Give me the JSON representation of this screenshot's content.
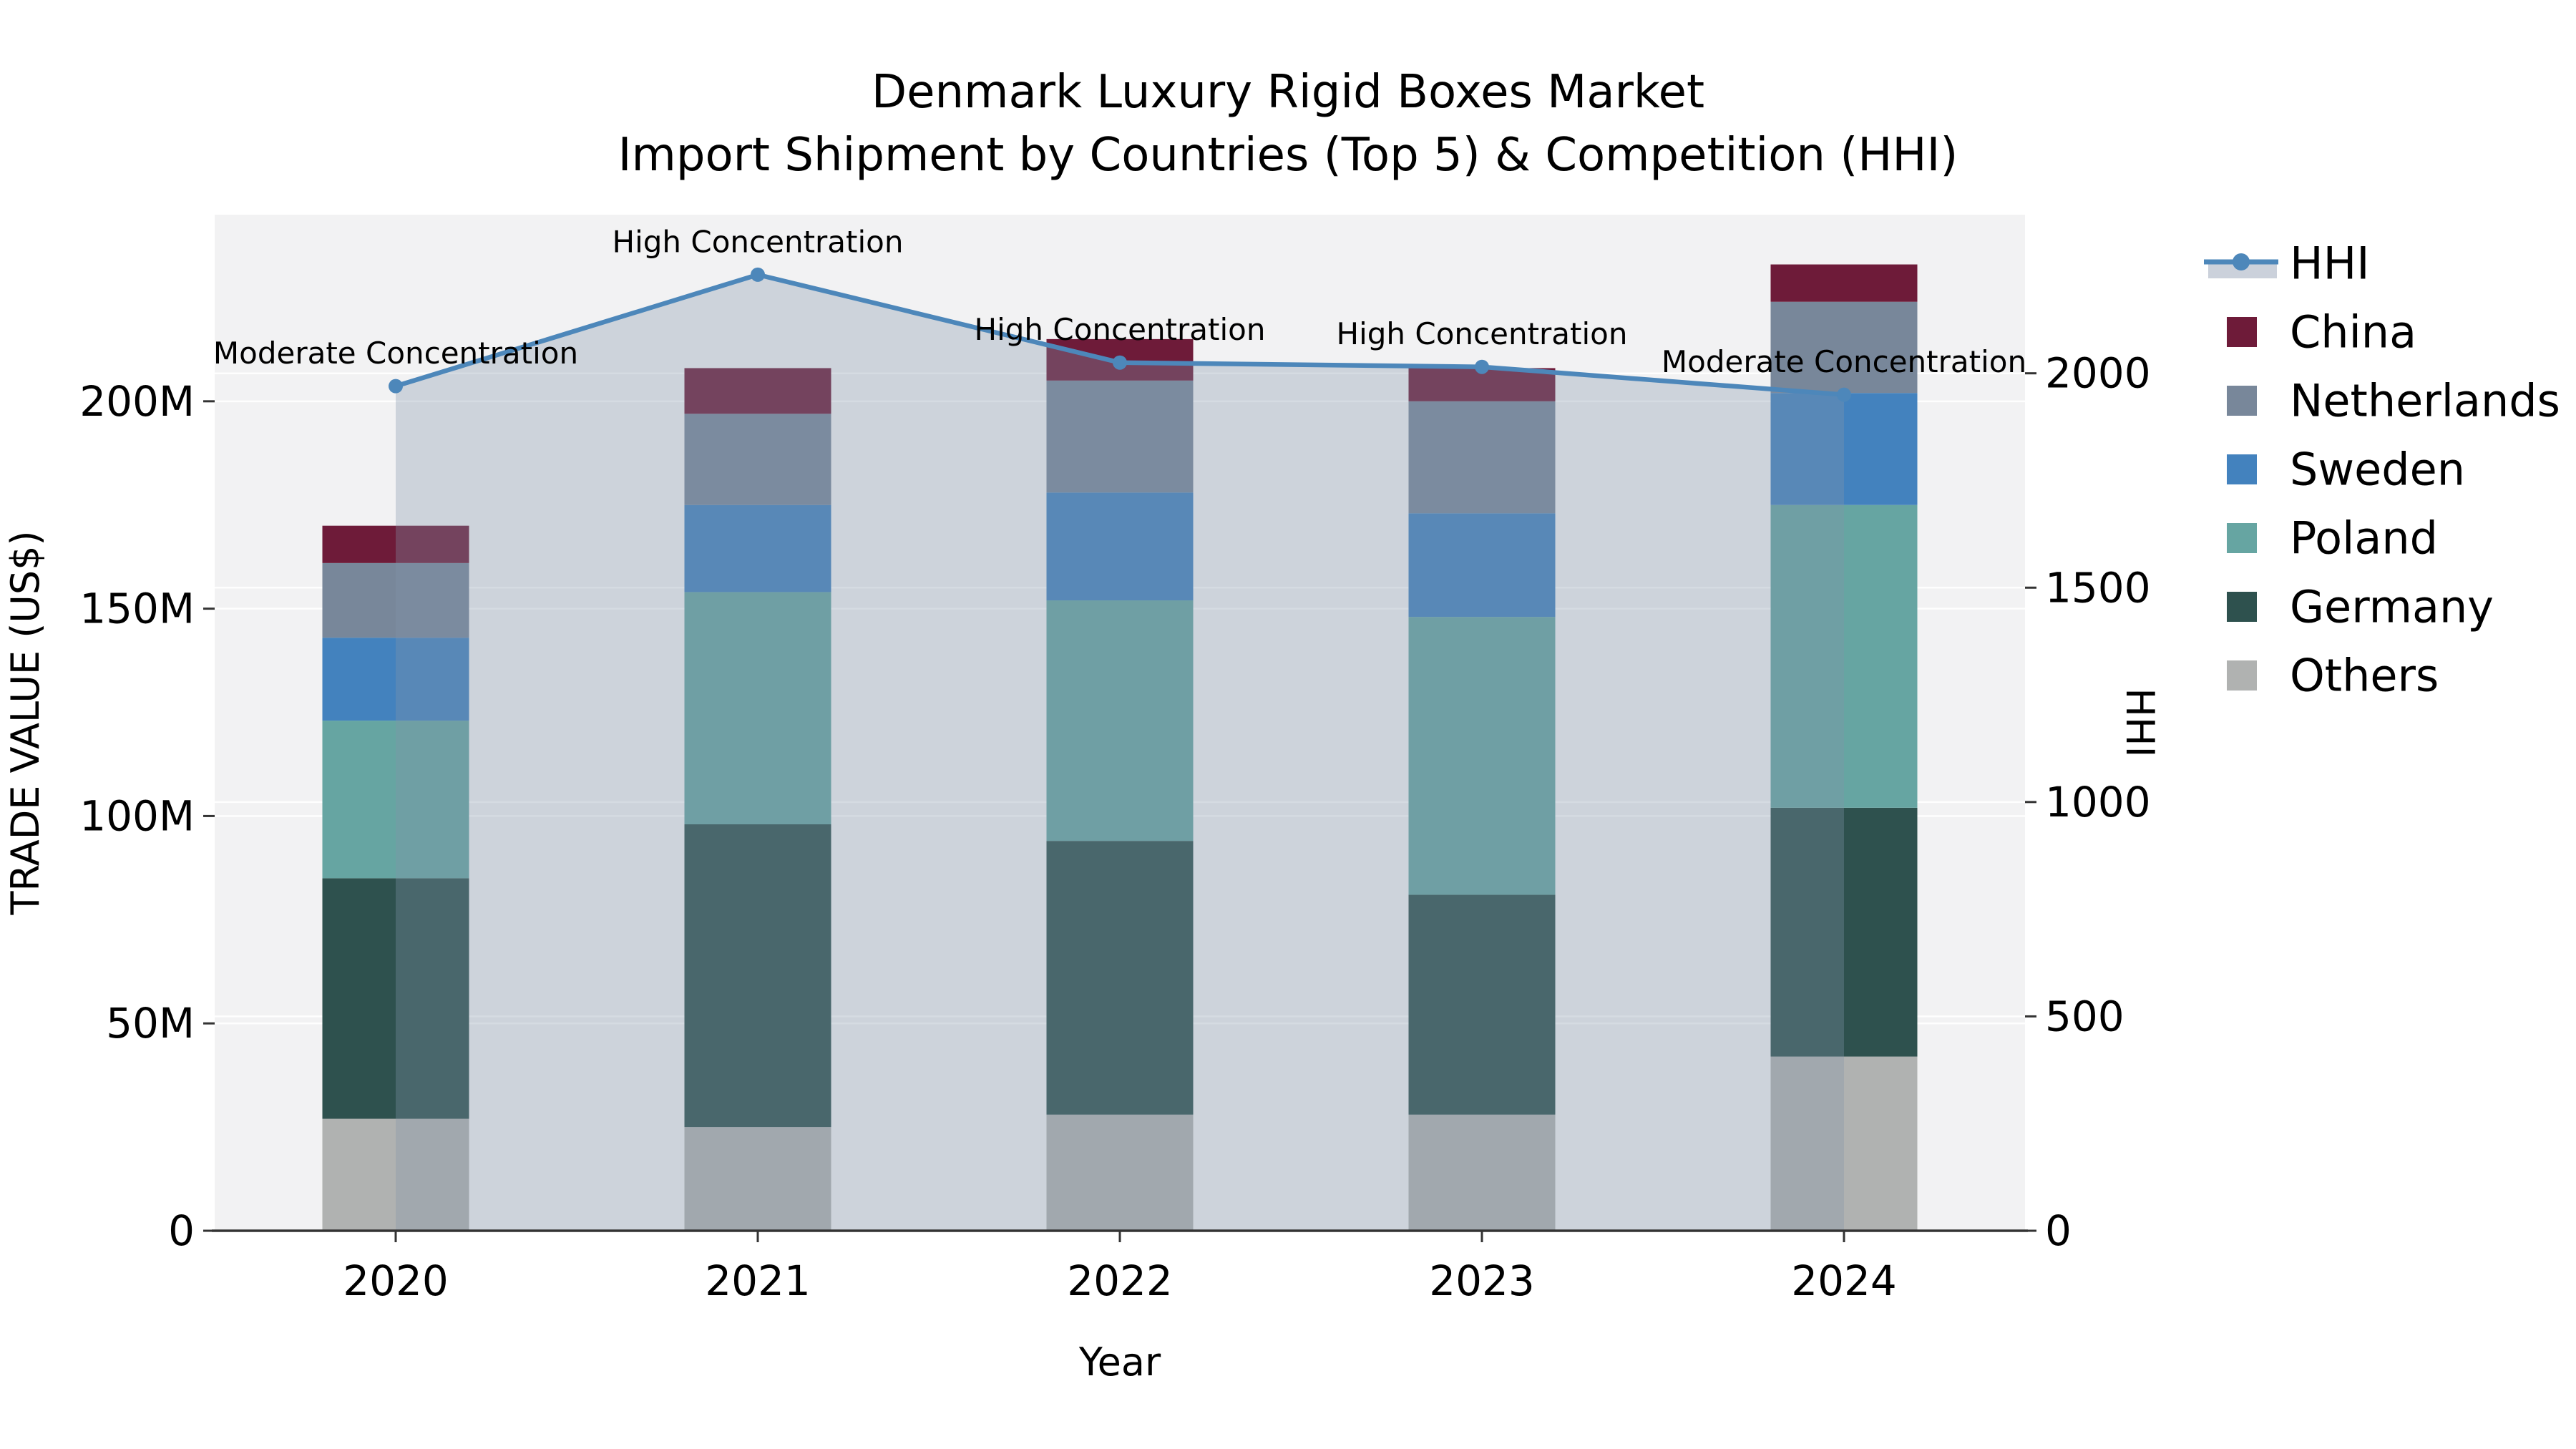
{
  "title": {
    "line1": "Denmark Luxury Rigid Boxes Market",
    "line2": "Import Shipment by Countries (Top 5) & Competition (HHI)"
  },
  "axes": {
    "x_label": "Year",
    "y_left_label": "TRADE VALUE (US$)",
    "y_right_label": "HHI"
  },
  "legend": {
    "items": [
      {
        "label": "HHI",
        "type": "line",
        "color": "#4D87BA"
      },
      {
        "label": "China",
        "type": "swatch",
        "color": "#6E1B39"
      },
      {
        "label": "Netherlands",
        "type": "swatch",
        "color": "#78879A"
      },
      {
        "label": "Sweden",
        "type": "swatch",
        "color": "#4382BE"
      },
      {
        "label": "Poland",
        "type": "swatch",
        "color": "#66A5A2"
      },
      {
        "label": "Germany",
        "type": "swatch",
        "color": "#2E514E"
      },
      {
        "label": "Others",
        "type": "swatch",
        "color": "#B0B2B1"
      }
    ]
  },
  "chart_data": {
    "type": "bar",
    "subtype": "stacked-bars-with-hhi-line",
    "title": "Denmark Luxury Rigid Boxes Market — Import Shipment by Countries (Top 5) & Competition (HHI)",
    "x": [
      "2020",
      "2021",
      "2022",
      "2023",
      "2024"
    ],
    "xlabel": "Year",
    "bar_value_unit": "US$ millions (estimated from axis)",
    "series": [
      {
        "name": "Others",
        "color": "#B0B2B1",
        "values": [
          27,
          25,
          28,
          28,
          42
        ]
      },
      {
        "name": "Germany",
        "color": "#2E514E",
        "values": [
          58,
          73,
          66,
          53,
          60
        ]
      },
      {
        "name": "Poland",
        "color": "#66A5A2",
        "values": [
          38,
          56,
          58,
          67,
          73
        ]
      },
      {
        "name": "Sweden",
        "color": "#4382BE",
        "values": [
          20,
          21,
          26,
          25,
          27
        ]
      },
      {
        "name": "Netherlands",
        "color": "#78879A",
        "values": [
          18,
          22,
          27,
          27,
          22
        ]
      },
      {
        "name": "China",
        "color": "#6E1B39",
        "values": [
          9,
          11,
          10,
          8,
          9
        ]
      }
    ],
    "stack_order": "bottom_to_top",
    "stack_totals": [
      170,
      208,
      215,
      208,
      233
    ],
    "line_series": {
      "name": "HHI",
      "axis": "right",
      "color": "#4D87BA",
      "area_fill": "rgba(132,148,170,0.33)",
      "values": [
        1970,
        2230,
        2025,
        2015,
        1950
      ]
    },
    "annotations": [
      "Moderate Concentration",
      "High Concentration",
      "High Concentration",
      "High Concentration",
      "Moderate Concentration"
    ],
    "y_left": {
      "label": "TRADE VALUE (US$)",
      "ticks": [
        0,
        50,
        100,
        150,
        200
      ],
      "tick_labels": [
        "0",
        "50M",
        "100M",
        "150M",
        "200M"
      ],
      "max": 245
    },
    "y_right": {
      "label": "HHI",
      "ticks": [
        0,
        500,
        1000,
        1500,
        2000
      ],
      "tick_labels": [
        "0",
        "500",
        "1000",
        "1500",
        "2000"
      ],
      "max": 2370
    },
    "grid": true,
    "legend_position": "right"
  },
  "colors": {
    "background": "#FFFFFF",
    "plot_bg": "#F2F2F3",
    "grid": "rgba(255,255,255,0.92)",
    "axis_line": "#333333",
    "hhi_line": "#4D87BA",
    "area_fill": "rgba(132,148,170,0.33)",
    "legend_fill_band": "#CBD1DB",
    "text": "#000000"
  }
}
